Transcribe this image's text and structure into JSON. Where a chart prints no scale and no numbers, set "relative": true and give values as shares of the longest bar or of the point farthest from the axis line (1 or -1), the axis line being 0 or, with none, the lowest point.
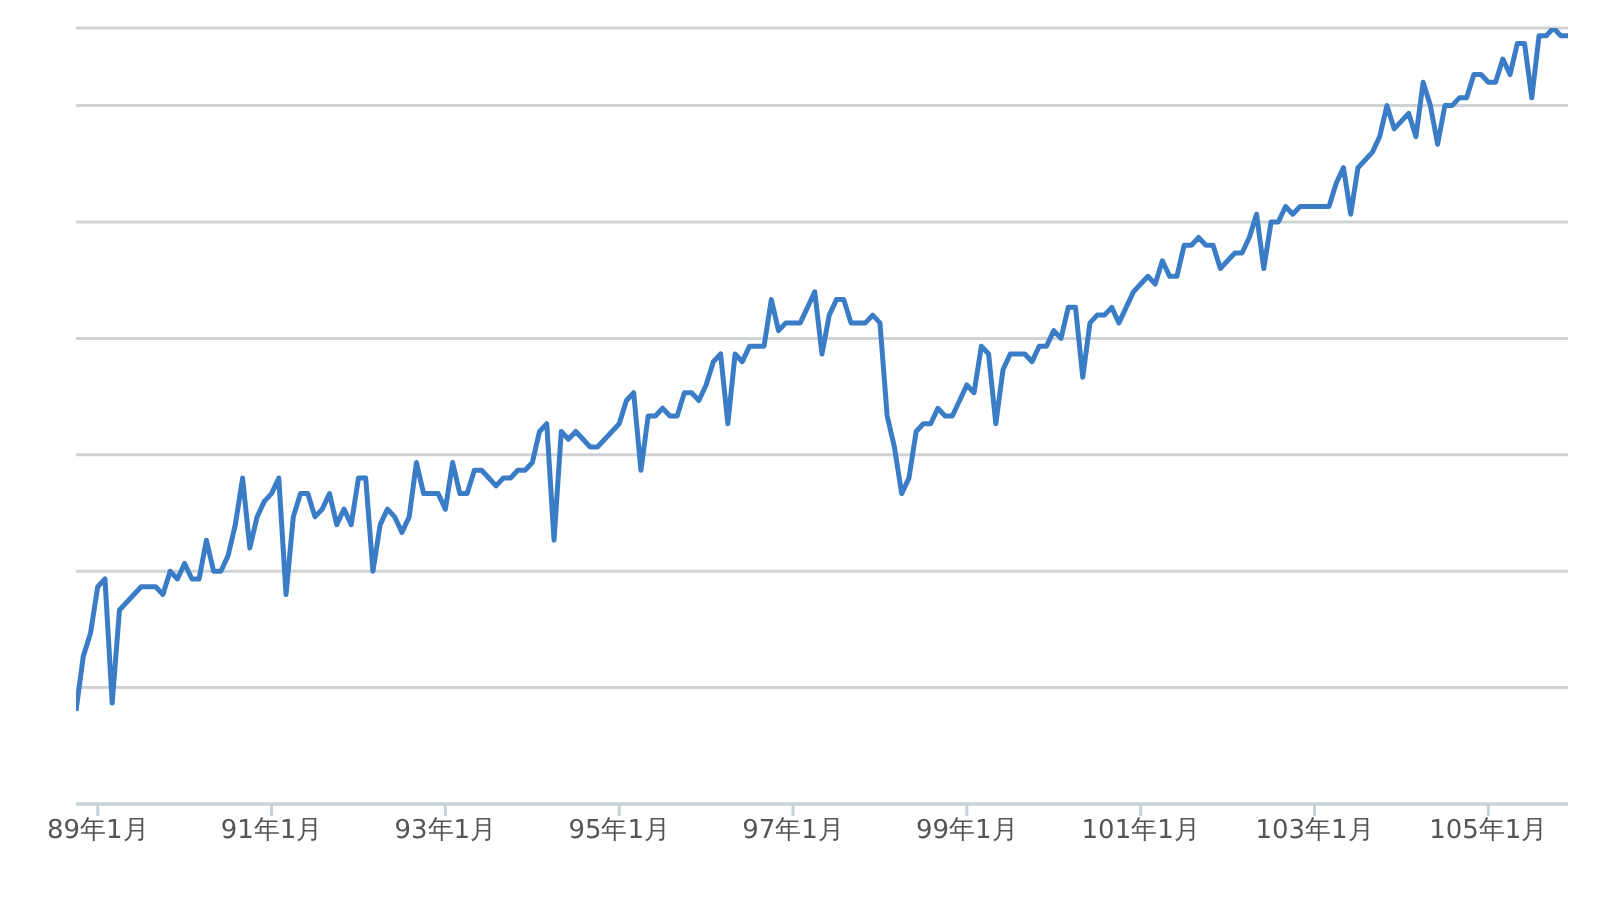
{
  "chart_data": {
    "type": "line",
    "relative": true,
    "color": "#3a7dc6",
    "grid": "y",
    "legend": false,
    "marker": "none",
    "line_style": "solid",
    "categories": [
      null,
      null,
      null,
      "89年1月",
      null,
      null,
      null,
      null,
      null,
      null,
      null,
      null,
      null,
      null,
      null,
      null,
      null,
      null,
      null,
      null,
      null,
      null,
      null,
      null,
      null,
      null,
      null,
      "91年1月",
      null,
      null,
      null,
      null,
      null,
      null,
      null,
      null,
      null,
      null,
      null,
      null,
      null,
      null,
      null,
      null,
      null,
      null,
      null,
      null,
      null,
      null,
      null,
      "93年1月",
      null,
      null,
      null,
      null,
      null,
      null,
      null,
      null,
      null,
      null,
      null,
      null,
      null,
      null,
      null,
      null,
      null,
      null,
      null,
      null,
      null,
      null,
      null,
      "95年1月",
      null,
      null,
      null,
      null,
      null,
      null,
      null,
      null,
      null,
      null,
      null,
      null,
      null,
      null,
      null,
      null,
      null,
      null,
      null,
      null,
      null,
      null,
      null,
      "97年1月",
      null,
      null,
      null,
      null,
      null,
      null,
      null,
      null,
      null,
      null,
      null,
      null,
      null,
      null,
      null,
      null,
      null,
      null,
      null,
      null,
      null,
      null,
      null,
      "99年1月",
      null,
      null,
      null,
      null,
      null,
      null,
      null,
      null,
      null,
      null,
      null,
      null,
      null,
      null,
      null,
      null,
      null,
      null,
      null,
      null,
      null,
      null,
      null,
      "101年1月",
      null,
      null,
      null,
      null,
      null,
      null,
      null,
      null,
      null,
      null,
      null,
      null,
      null,
      null,
      null,
      null,
      null,
      null,
      null,
      null,
      null,
      null,
      null,
      "103年1月",
      null,
      null,
      null,
      null,
      null,
      null,
      null,
      null,
      null,
      null,
      null,
      null,
      null,
      null,
      null,
      null,
      null,
      null,
      null,
      null,
      null,
      null,
      null,
      "105年1月",
      null,
      null,
      null,
      null,
      null,
      null,
      null,
      null,
      null,
      null,
      null
    ],
    "values": [
      0.12,
      0.19,
      0.22,
      0.28,
      0.29,
      0.13,
      0.25,
      0.26,
      0.27,
      0.28,
      0.28,
      0.28,
      0.27,
      0.3,
      0.29,
      0.31,
      0.29,
      0.29,
      0.34,
      0.3,
      0.3,
      0.32,
      0.36,
      0.42,
      0.33,
      0.37,
      0.39,
      0.4,
      0.42,
      0.27,
      0.37,
      0.4,
      0.4,
      0.37,
      0.38,
      0.4,
      0.36,
      0.38,
      0.36,
      0.42,
      0.42,
      0.3,
      0.36,
      0.38,
      0.37,
      0.35,
      0.37,
      0.44,
      0.4,
      0.4,
      0.4,
      0.38,
      0.44,
      0.4,
      0.4,
      0.43,
      0.43,
      0.42,
      0.41,
      0.42,
      0.42,
      0.43,
      0.43,
      0.44,
      0.48,
      0.49,
      0.34,
      0.48,
      0.47,
      0.48,
      0.47,
      0.46,
      0.46,
      0.47,
      0.48,
      0.49,
      0.52,
      0.53,
      0.43,
      0.5,
      0.5,
      0.51,
      0.5,
      0.5,
      0.53,
      0.53,
      0.52,
      0.54,
      0.57,
      0.58,
      0.49,
      0.58,
      0.57,
      0.59,
      0.59,
      0.59,
      0.65,
      0.61,
      0.62,
      0.62,
      0.62,
      0.64,
      0.66,
      0.58,
      0.63,
      0.65,
      0.65,
      0.62,
      0.62,
      0.62,
      0.63,
      0.62,
      0.5,
      0.46,
      0.4,
      0.42,
      0.48,
      0.49,
      0.49,
      0.51,
      0.5,
      0.5,
      0.52,
      0.54,
      0.53,
      0.59,
      0.58,
      0.49,
      0.56,
      0.58,
      0.58,
      0.58,
      0.57,
      0.59,
      0.59,
      0.61,
      0.6,
      0.64,
      0.64,
      0.55,
      0.62,
      0.63,
      0.63,
      0.64,
      0.62,
      0.64,
      0.66,
      0.67,
      0.68,
      0.67,
      0.7,
      0.68,
      0.68,
      0.72,
      0.72,
      0.73,
      0.72,
      0.72,
      0.69,
      0.7,
      0.71,
      0.71,
      0.73,
      0.76,
      0.69,
      0.75,
      0.75,
      0.77,
      0.76,
      0.77,
      0.77,
      0.77,
      0.77,
      0.77,
      0.8,
      0.82,
      0.76,
      0.82,
      0.83,
      0.84,
      0.86,
      0.9,
      0.87,
      0.88,
      0.89,
      0.86,
      0.93,
      0.9,
      0.85,
      0.9,
      0.9,
      0.91,
      0.91,
      0.94,
      0.94,
      0.93,
      0.93,
      0.96,
      0.94,
      0.98,
      0.98,
      0.91,
      0.99,
      0.99,
      1.0,
      0.99,
      0.99
    ]
  }
}
